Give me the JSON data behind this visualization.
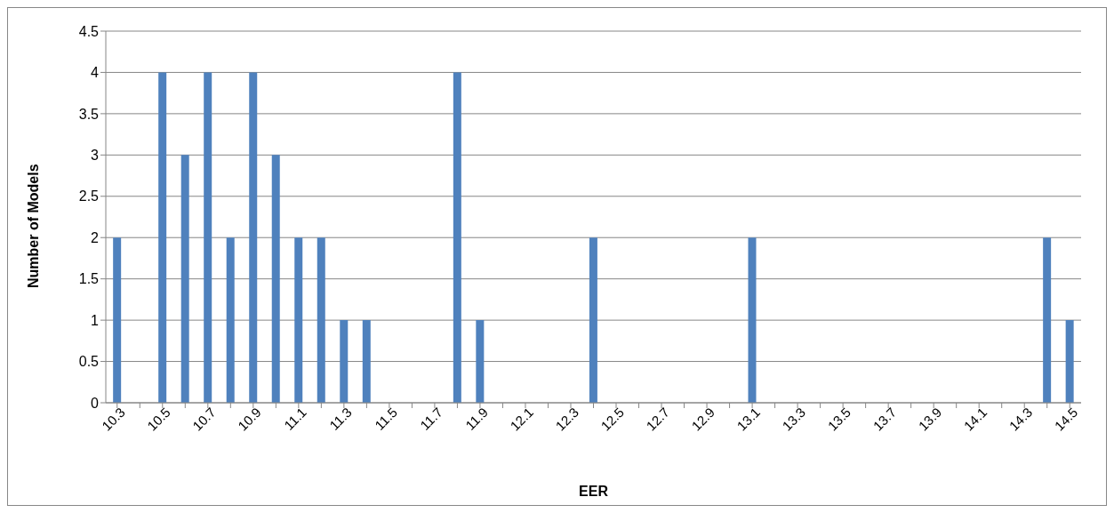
{
  "chart_data": {
    "type": "bar",
    "xlabel": "EER",
    "ylabel": "Number of Models",
    "categories": [
      "10.3",
      null,
      "10.5",
      null,
      "10.7",
      null,
      "10.9",
      null,
      "11.1",
      null,
      "11.3",
      null,
      "11.5",
      null,
      "11.7",
      null,
      "11.9",
      null,
      "12.1",
      null,
      "12.3",
      null,
      "12.5",
      null,
      "12.7",
      null,
      "12.9",
      null,
      "13.1",
      null,
      "13.3",
      null,
      "13.5",
      null,
      "13.7",
      null,
      "13.9",
      null,
      "14.1",
      null,
      "14.3",
      null,
      "14.5"
    ],
    "values": [
      2,
      0,
      4,
      3,
      4,
      2,
      4,
      3,
      2,
      2,
      1,
      1,
      0,
      0,
      0,
      4,
      1,
      0,
      0,
      0,
      0,
      2,
      0,
      0,
      0,
      0,
      0,
      0,
      2,
      0,
      0,
      0,
      0,
      0,
      0,
      0,
      0,
      0,
      0,
      0,
      0,
      2,
      1
    ],
    "color": "#4f81bd",
    "ylim": [
      0,
      4.5
    ],
    "yticks": [
      0,
      0.5,
      1,
      1.5,
      2,
      2.5,
      3,
      3.5,
      4,
      4.5
    ],
    "grid": "y",
    "legend": false
  }
}
